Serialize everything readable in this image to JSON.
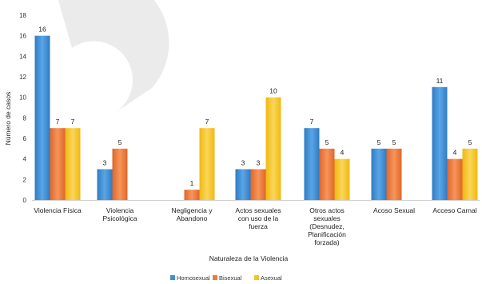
{
  "chart_data": {
    "type": "bar",
    "categories": [
      [
        "Violencia Física"
      ],
      [
        "Violencia",
        "Psicológica"
      ],
      [
        "Negligencia y",
        "Abandono"
      ],
      [
        "Actos sexuales",
        "con uso de la",
        "fuerza"
      ],
      [
        "Otros actos",
        "sexuales",
        "(Desnudez,",
        "Planificación",
        "forzada)"
      ],
      [
        "Acoso Sexual"
      ],
      [
        "Acceso Carnal"
      ]
    ],
    "series": [
      {
        "name": "Homosexual",
        "color": "#3d8fd6",
        "values": [
          16,
          3,
          null,
          3,
          7,
          5,
          11
        ]
      },
      {
        "name": "Bisexual",
        "color": "#ee7a36",
        "values": [
          7,
          5,
          1,
          3,
          5,
          5,
          4
        ]
      },
      {
        "name": "Asexual",
        "color": "#f5c41b",
        "values": [
          7,
          null,
          7,
          10,
          4,
          null,
          5
        ]
      }
    ],
    "xlabel": "Naturaleza de la Violencia",
    "ylabel": "Número de casos",
    "ylim": [
      0,
      18
    ],
    "yticks": [
      0,
      2,
      4,
      6,
      8,
      10,
      12,
      14,
      16,
      18
    ],
    "grid": false,
    "legend": "bottom"
  }
}
